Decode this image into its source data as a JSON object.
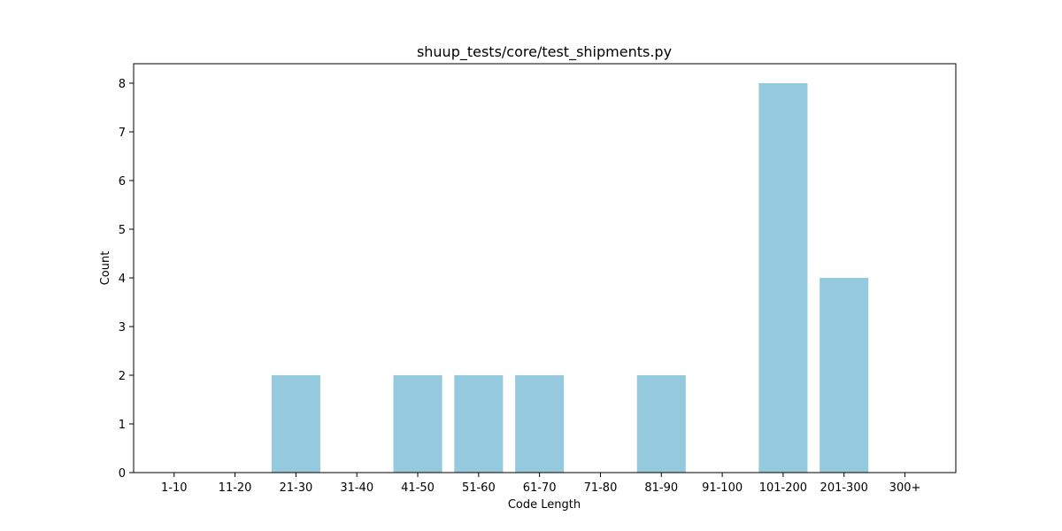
{
  "chart_data": {
    "type": "bar",
    "title": "shuup_tests/core/test_shipments.py",
    "xlabel": "Code Length",
    "ylabel": "Count",
    "categories": [
      "1-10",
      "11-20",
      "21-30",
      "31-40",
      "41-50",
      "51-60",
      "61-70",
      "71-80",
      "81-90",
      "91-100",
      "101-200",
      "201-300",
      "300+"
    ],
    "values": [
      0,
      0,
      2,
      0,
      2,
      2,
      2,
      0,
      2,
      0,
      8,
      4,
      0
    ],
    "ylim": [
      0,
      8.4
    ],
    "yticks": [
      0,
      1,
      2,
      3,
      4,
      5,
      6,
      7,
      8
    ],
    "grid": false,
    "legend": "none",
    "bar_color": "#95c9dd"
  }
}
